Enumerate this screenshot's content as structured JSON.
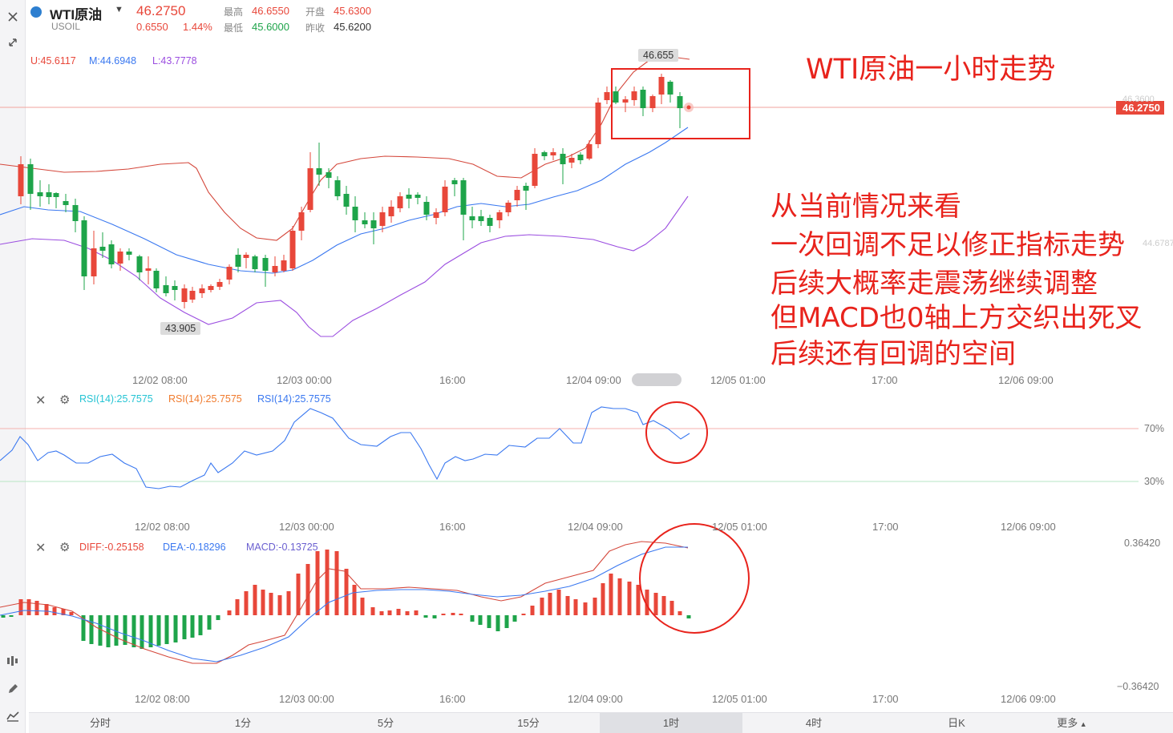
{
  "header": {
    "symbol_name": "WTI原油",
    "symbol_code": "USOIL",
    "price": "46.2750",
    "change": "0.6550",
    "change_pct": "1.44%",
    "high_label": "最高",
    "high_value": "46.6550",
    "low_label": "最低",
    "low_value": "45.6000",
    "open_label": "开盘",
    "open_value": "45.6300",
    "prev_label": "昨收",
    "prev_value": "45.6200"
  },
  "boll": {
    "u": "U:45.6117",
    "m": "M:44.6948",
    "l": "L:43.7778"
  },
  "main_chart": {
    "current_price_tag": "46.2750",
    "high_marker": "46.655",
    "low_marker": "43.905",
    "faded_right_1": "46.3600",
    "faded_right_2": "44.6787",
    "x_labels_main": [
      "12/02 08:00",
      "12/03 00:00",
      "16:00",
      "12/04 09:00",
      "12/05 01:00",
      "17:00",
      "12/06 09:00"
    ],
    "x_labels_sub": [
      "12/02 08:00",
      "12/03 00:00",
      "16:00",
      "12/04 09:00",
      "12/05 01:00",
      "17:00",
      "12/06 09:00"
    ]
  },
  "rsi": {
    "labels": [
      "RSI(14):25.7575",
      "RSI(14):25.7575",
      "RSI(14):25.7575"
    ],
    "colors": [
      "#25c4d4",
      "#f07b2e",
      "#3a78f0"
    ],
    "level_70": "70%",
    "level_30": "30%"
  },
  "macd": {
    "diff": "DIFF:-0.25158",
    "dea": "DEA:-0.18296",
    "macd": "MACD:-0.13725",
    "top": "0.36420",
    "bottom": "−0.36420"
  },
  "annotations": {
    "title": "WTI原油一小时走势",
    "lines": [
      "从当前情况来看",
      "一次回调不足以修正指标走势",
      "后续大概率走震荡继续调整",
      "但MACD也0轴上方交织出死叉",
      "后续还有回调的空间"
    ]
  },
  "timeframes": {
    "items": [
      "分时",
      "1分",
      "5分",
      "15分",
      "1时",
      "4时",
      "日K"
    ],
    "active": "1时",
    "more": "更多"
  },
  "chart_data": {
    "type": "candlestick",
    "symbol": "WTI原油",
    "interval": "1时",
    "price_high": 46.655,
    "price_low": 43.905,
    "current": 46.275,
    "indicators": [
      "BOLL",
      "RSI(14)",
      "MACD"
    ]
  },
  "colors": {
    "up": "#e8473a",
    "down": "#1ea44a",
    "mid": "#3a78f0",
    "lower": "#9b4de0",
    "annotation": "#e8231c"
  }
}
